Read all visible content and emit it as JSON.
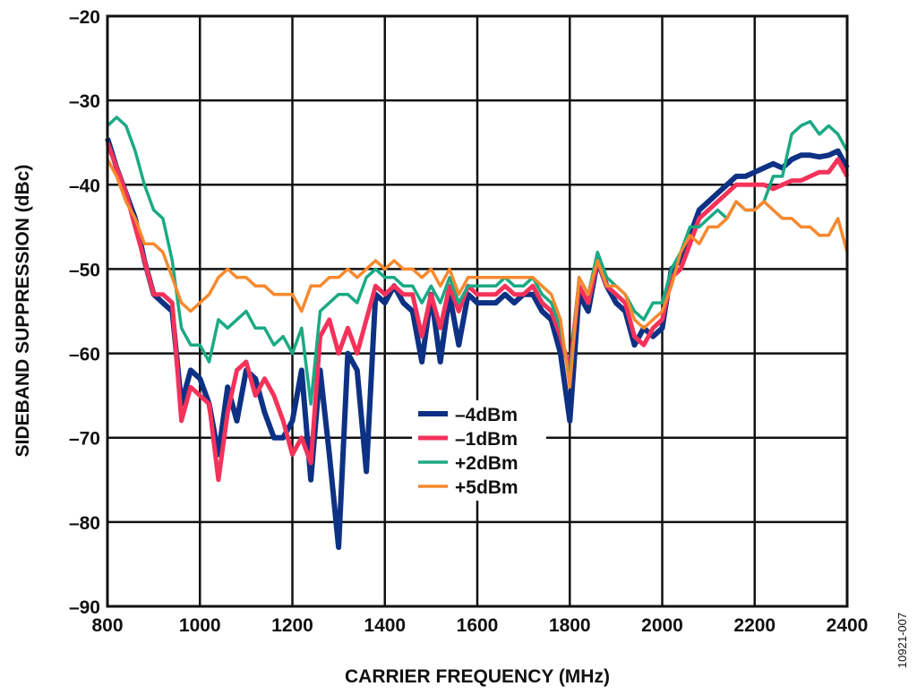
{
  "chart_data": {
    "type": "line",
    "title": "",
    "xlabel": "CARRIER FREQUENCY (MHz)",
    "ylabel": "SIDEBAND SUPPRESSION (dBc)",
    "xlim": [
      800,
      2400
    ],
    "ylim": [
      -90,
      -20
    ],
    "x_ticks": [
      800,
      1000,
      1200,
      1400,
      1600,
      1800,
      2000,
      2200,
      2400
    ],
    "y_ticks": [
      -20,
      -30,
      -40,
      -50,
      -60,
      -70,
      -80,
      -90
    ],
    "x_tick_labels": [
      "800",
      "1000",
      "1200",
      "1400",
      "1600",
      "1800",
      "2000",
      "2200",
      "2400"
    ],
    "y_tick_labels": [
      "–20",
      "–30",
      "–40",
      "–50",
      "–60",
      "–70",
      "–80",
      "–90"
    ],
    "grid": true,
    "legend_position": "center",
    "annotation": "10921-007",
    "x": [
      800,
      820,
      840,
      860,
      880,
      900,
      920,
      940,
      960,
      980,
      1000,
      1020,
      1040,
      1060,
      1080,
      1100,
      1120,
      1140,
      1160,
      1180,
      1200,
      1220,
      1240,
      1260,
      1280,
      1300,
      1320,
      1340,
      1360,
      1380,
      1400,
      1420,
      1440,
      1460,
      1480,
      1500,
      1520,
      1540,
      1560,
      1580,
      1600,
      1620,
      1640,
      1660,
      1680,
      1700,
      1720,
      1740,
      1760,
      1780,
      1800,
      1820,
      1840,
      1860,
      1880,
      1900,
      1920,
      1940,
      1960,
      1980,
      2000,
      2020,
      2040,
      2060,
      2080,
      2100,
      2120,
      2140,
      2160,
      2180,
      2200,
      2220,
      2240,
      2260,
      2280,
      2300,
      2320,
      2340,
      2360,
      2380,
      2400
    ],
    "series": [
      {
        "name": "–4dBm",
        "color": "#0d3184",
        "values": [
          -34.5,
          -38,
          -41,
          -44,
          -49,
          -53,
          -54,
          -55,
          -66,
          -62,
          -63,
          -66,
          -72,
          -64,
          -68,
          -62,
          -63,
          -67,
          -70,
          -70,
          -68,
          -62,
          -75,
          -62,
          -72,
          -83,
          -60,
          -62,
          -74,
          -53,
          -54,
          -52,
          -54,
          -55,
          -61,
          -53,
          -61,
          -53,
          -59,
          -53,
          -54,
          -54,
          -54,
          -53,
          -54,
          -53,
          -53,
          -55,
          -56,
          -60,
          -68,
          -53,
          -55,
          -49,
          -52,
          -54,
          -55,
          -59,
          -57,
          -58,
          -57,
          -50,
          -49,
          -46,
          -43,
          -42,
          -41,
          -40,
          -39,
          -39,
          -38.5,
          -38,
          -37.5,
          -38,
          -37,
          -36.5,
          -36.5,
          -36.7,
          -36.5,
          -36,
          -38
        ]
      },
      {
        "name": "–1dBm",
        "color": "#f5325a",
        "values": [
          -35,
          -38,
          -41,
          -45,
          -49,
          -53,
          -53,
          -54,
          -68,
          -64,
          -65,
          -66,
          -75,
          -67,
          -62,
          -61,
          -65,
          -63,
          -65,
          -68,
          -72,
          -70,
          -73,
          -58,
          -56,
          -60,
          -57,
          -60,
          -56,
          -52,
          -53,
          -52,
          -53,
          -53,
          -58,
          -53,
          -57,
          -52,
          -55,
          -52,
          -53,
          -53,
          -53,
          -52,
          -53,
          -53,
          -52,
          -54,
          -55,
          -58,
          -62,
          -52,
          -54,
          -49,
          -52,
          -53,
          -54,
          -58,
          -59,
          -57,
          -56,
          -51,
          -50,
          -47,
          -44,
          -43,
          -42,
          -41,
          -40,
          -40,
          -40,
          -40,
          -40.5,
          -40,
          -39.5,
          -39.5,
          -39,
          -38.5,
          -38.5,
          -37,
          -39
        ]
      },
      {
        "name": "+2dBm",
        "color": "#1aaa84",
        "values": [
          -33,
          -32,
          -33,
          -36,
          -40,
          -43,
          -44,
          -49,
          -57,
          -59,
          -59,
          -61,
          -56,
          -57,
          -56,
          -55,
          -57,
          -57,
          -59,
          -58,
          -60,
          -57,
          -66,
          -55,
          -54,
          -53,
          -53,
          -54,
          -51,
          -50,
          -51,
          -51,
          -52,
          -52,
          -54,
          -52,
          -54,
          -51,
          -54,
          -52,
          -52,
          -52,
          -52,
          -51,
          -52,
          -52,
          -51,
          -53,
          -54,
          -57,
          -63,
          -51,
          -53,
          -48,
          -51,
          -52,
          -53,
          -55,
          -56,
          -54,
          -54,
          -50,
          -48,
          -45,
          -45,
          -44,
          -43,
          -44,
          -42,
          -43,
          -43,
          -42,
          -39,
          -39,
          -34,
          -33,
          -32.5,
          -34,
          -33,
          -34,
          -36
        ]
      },
      {
        "name": "+5dBm",
        "color": "#f7892e",
        "values": [
          -37,
          -39,
          -42,
          -44,
          -47,
          -47,
          -48,
          -51,
          -54,
          -55,
          -54,
          -53,
          -51,
          -50,
          -51,
          -51,
          -52,
          -52,
          -53,
          -53,
          -53,
          -55,
          -52,
          -52,
          -51,
          -51,
          -50,
          -51,
          -50,
          -49,
          -50,
          -49,
          -50,
          -50,
          -51,
          -50,
          -52,
          -50,
          -53,
          -51,
          -51,
          -51,
          -51,
          -51,
          -51,
          -51,
          -51,
          -52,
          -53,
          -56,
          -64,
          -51,
          -53,
          -49,
          -52,
          -52,
          -53,
          -56,
          -57,
          -56,
          -55,
          -52,
          -48,
          -46,
          -47,
          -45,
          -45,
          -44,
          -42,
          -43,
          -43,
          -42,
          -43,
          -44,
          -44,
          -45,
          -45,
          -46,
          -46,
          -44,
          -48
        ]
      }
    ]
  }
}
